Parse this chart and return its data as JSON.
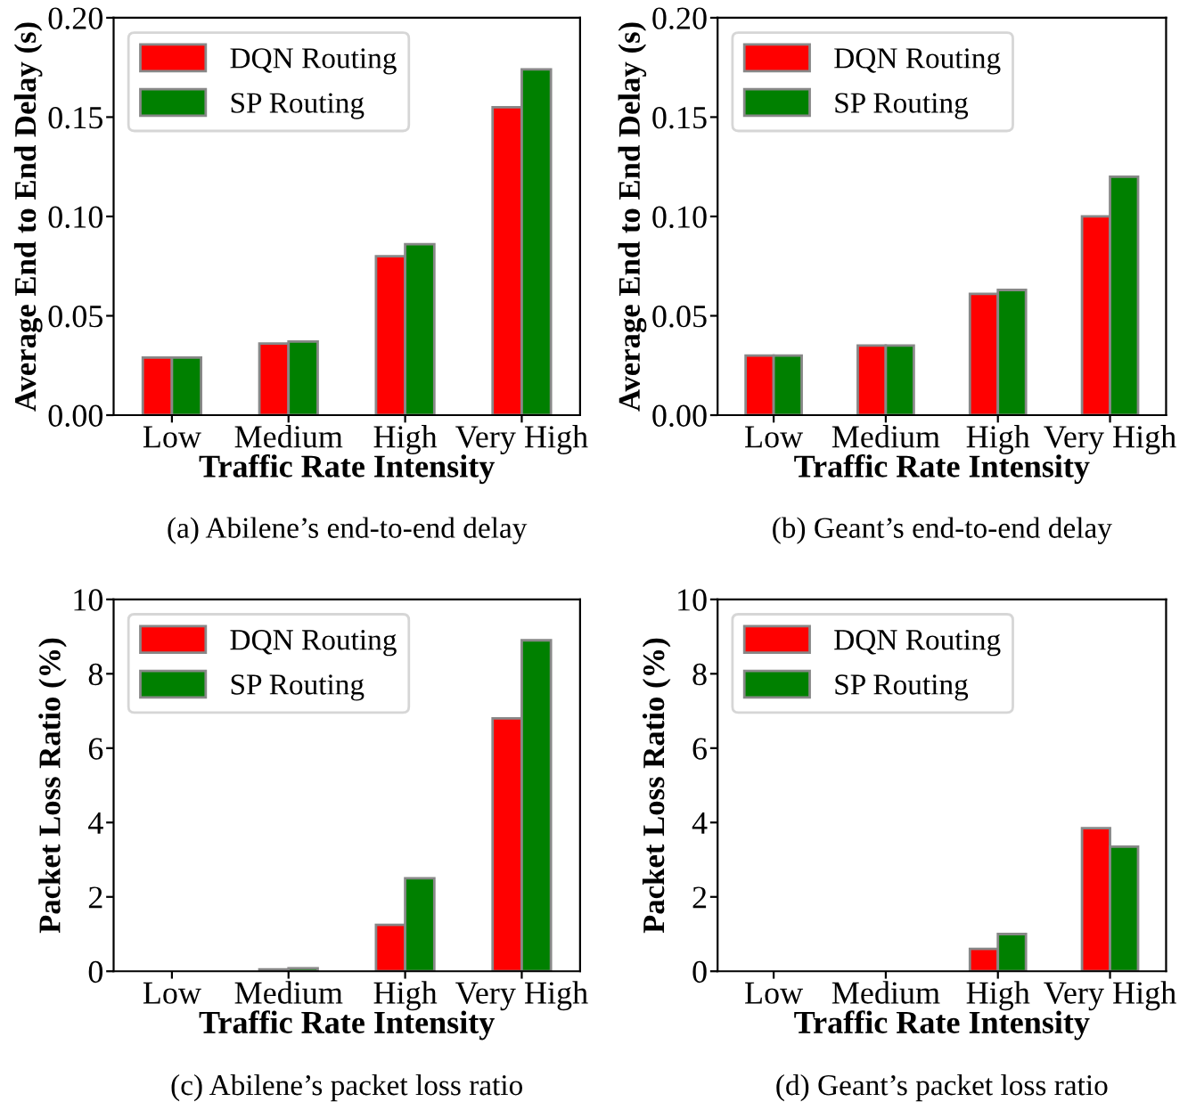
{
  "chart_data": [
    {
      "type": "bar",
      "title": "(a) Abilene’s end-to-end delay",
      "xlabel": "Traffic Rate Intensity",
      "ylabel": "Average End to End Delay (s)",
      "categories": [
        "Low",
        "Medium",
        "High",
        "Very High"
      ],
      "series": [
        {
          "name": "DQN Routing",
          "color": "#ff0000",
          "values": [
            0.029,
            0.036,
            0.08,
            0.155
          ]
        },
        {
          "name": "SP Routing",
          "color": "#008000",
          "values": [
            0.029,
            0.037,
            0.086,
            0.174
          ]
        }
      ],
      "ylim": [
        0,
        0.2
      ],
      "yticks": [
        {
          "value": 0,
          "label": "0.00"
        },
        {
          "value": 0.05,
          "label": "0.05"
        },
        {
          "value": 0.1,
          "label": "0.10"
        },
        {
          "value": 0.15,
          "label": "0.15"
        },
        {
          "value": 0.2,
          "label": "0.20"
        }
      ],
      "legend": "top left",
      "grid": false
    },
    {
      "type": "bar",
      "title": "(b) Geant’s end-to-end delay",
      "xlabel": "Traffic Rate Intensity",
      "ylabel": "Average End to End Delay (s)",
      "categories": [
        "Low",
        "Medium",
        "High",
        "Very High"
      ],
      "series": [
        {
          "name": "DQN Routing",
          "color": "#ff0000",
          "values": [
            0.03,
            0.035,
            0.061,
            0.1
          ]
        },
        {
          "name": "SP Routing",
          "color": "#008000",
          "values": [
            0.03,
            0.035,
            0.063,
            0.12
          ]
        }
      ],
      "ylim": [
        0,
        0.2
      ],
      "yticks": [
        {
          "value": 0,
          "label": "0.00"
        },
        {
          "value": 0.05,
          "label": "0.05"
        },
        {
          "value": 0.1,
          "label": "0.10"
        },
        {
          "value": 0.15,
          "label": "0.15"
        },
        {
          "value": 0.2,
          "label": "0.20"
        }
      ],
      "legend": "top left",
      "grid": false
    },
    {
      "type": "bar",
      "title": "(c) Abilene’s packet loss ratio",
      "xlabel": "Traffic Rate Intensity",
      "ylabel": "Packet Loss Ratio (%)",
      "categories": [
        "Low",
        "Medium",
        "High",
        "Very High"
      ],
      "series": [
        {
          "name": "DQN Routing",
          "color": "#ff0000",
          "values": [
            0,
            0.05,
            1.25,
            6.8
          ]
        },
        {
          "name": "SP Routing",
          "color": "#008000",
          "values": [
            0,
            0.08,
            2.5,
            8.9
          ]
        }
      ],
      "ylim": [
        0,
        10
      ],
      "yticks": [
        0,
        2,
        4,
        6,
        8,
        10
      ],
      "legend": "top left",
      "grid": false
    },
    {
      "type": "bar",
      "title": "(d) Geant’s packet loss ratio",
      "xlabel": "Traffic Rate Intensity",
      "ylabel": "Packet Loss Ratio (%)",
      "categories": [
        "Low",
        "Medium",
        "High",
        "Very High"
      ],
      "series": [
        {
          "name": "DQN Routing",
          "color": "#ff0000",
          "values": [
            0,
            0,
            0.6,
            3.85
          ]
        },
        {
          "name": "SP Routing",
          "color": "#008000",
          "values": [
            0,
            0,
            1.0,
            3.35
          ]
        }
      ],
      "ylim": [
        0,
        10
      ],
      "yticks": [
        0,
        2,
        4,
        6,
        8,
        10
      ],
      "legend": "top left",
      "grid": false
    }
  ]
}
